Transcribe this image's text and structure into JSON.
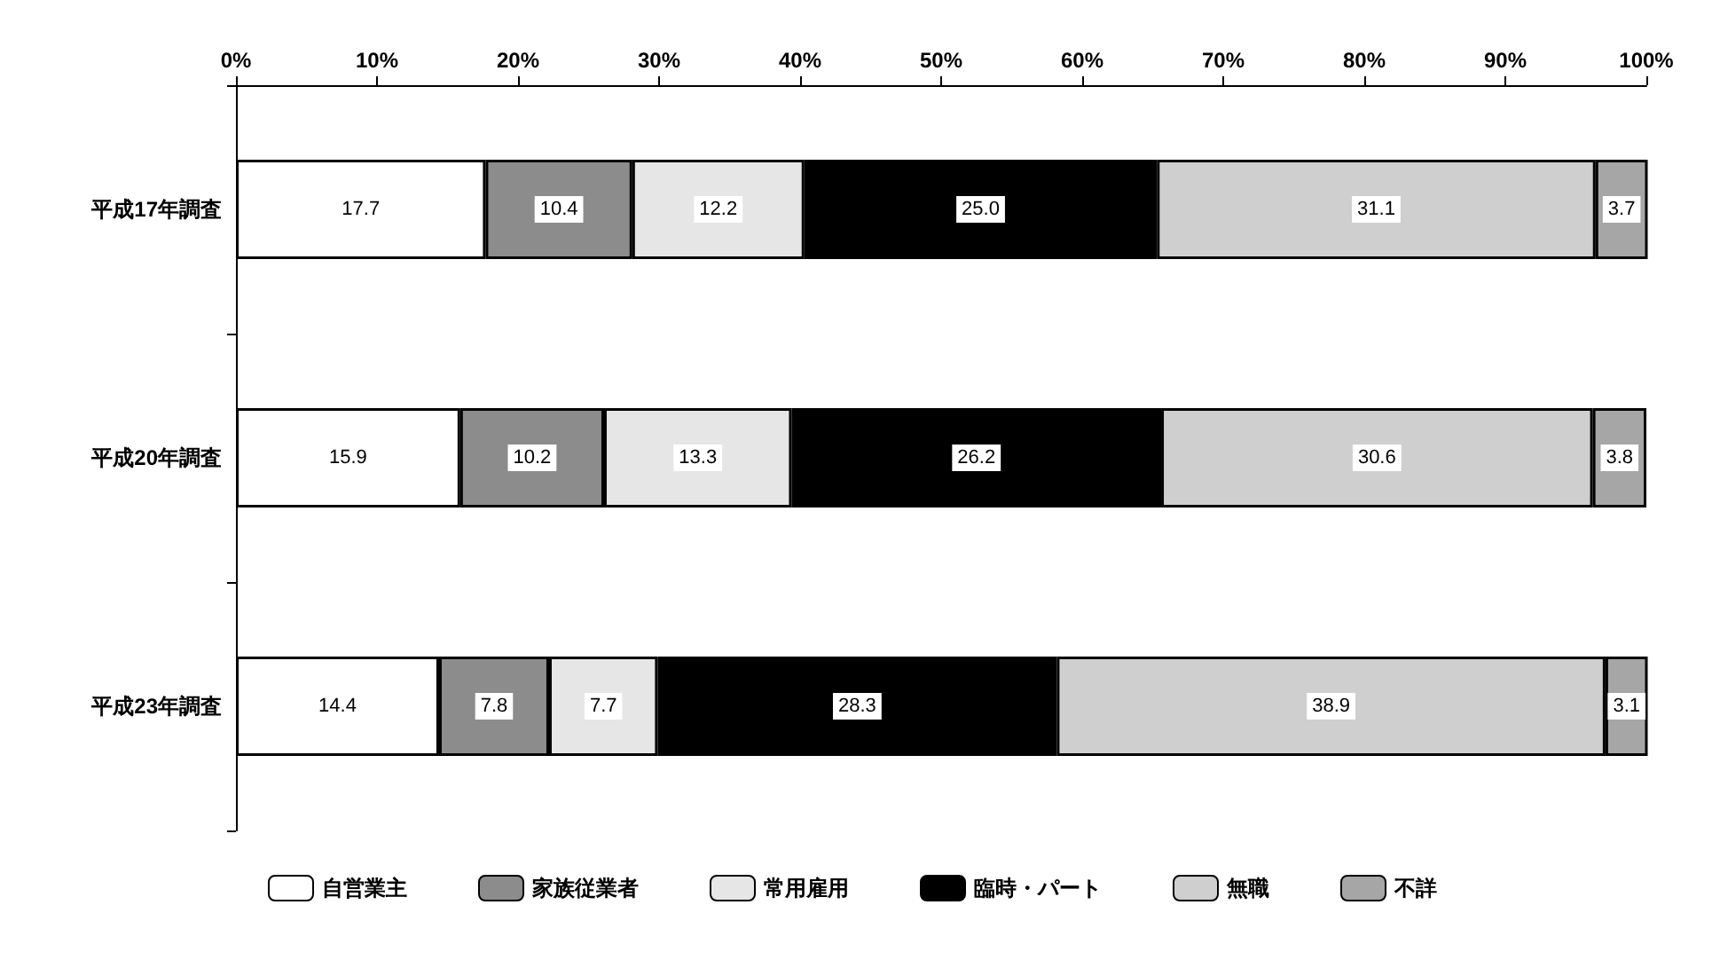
{
  "chart_data": {
    "type": "bar",
    "orientation": "horizontal",
    "stacked": true,
    "legend": "bottom",
    "grid": false,
    "categories": [
      "平成17年調査",
      "平成20年調査",
      "平成23年調査"
    ],
    "xlim": [
      0,
      100
    ],
    "xticks": [
      {
        "value": 0,
        "label": "0%"
      },
      {
        "value": 10,
        "label": "10%"
      },
      {
        "value": 20,
        "label": "20%"
      },
      {
        "value": 30,
        "label": "30%"
      },
      {
        "value": 40,
        "label": "40%"
      },
      {
        "value": 50,
        "label": "50%"
      },
      {
        "value": 60,
        "label": "60%"
      },
      {
        "value": 70,
        "label": "70%"
      },
      {
        "value": 80,
        "label": "80%"
      },
      {
        "value": 90,
        "label": "90%"
      },
      {
        "value": 100,
        "label": "100%"
      }
    ],
    "series": [
      {
        "name": "自営業主",
        "color": "#ffffff",
        "values": [
          17.7,
          15.9,
          14.4
        ],
        "value_labels": [
          "17.7",
          "15.9",
          "14.4"
        ]
      },
      {
        "name": "家族従業者",
        "color": "#8c8c8c",
        "values": [
          10.4,
          10.2,
          7.8
        ],
        "value_labels": [
          "10.4",
          "10.2",
          "7.8"
        ]
      },
      {
        "name": "常用雇用",
        "color": "#e6e6e6",
        "values": [
          12.2,
          13.3,
          7.7
        ],
        "value_labels": [
          "12.2",
          "13.3",
          "7.7"
        ]
      },
      {
        "name": "臨時・パート",
        "color": "#000000",
        "values": [
          25.0,
          26.2,
          28.3
        ],
        "value_labels": [
          "25.0",
          "26.2",
          "28.3"
        ]
      },
      {
        "name": "無職",
        "color": "#cfcfcf",
        "values": [
          31.1,
          30.6,
          38.9
        ],
        "value_labels": [
          "31.1",
          "30.6",
          "38.9"
        ]
      },
      {
        "name": "不詳",
        "color": "#a6a6a6",
        "values": [
          3.7,
          3.8,
          3.1
        ],
        "value_labels": [
          "3.7",
          "3.8",
          "3.1"
        ]
      }
    ]
  }
}
